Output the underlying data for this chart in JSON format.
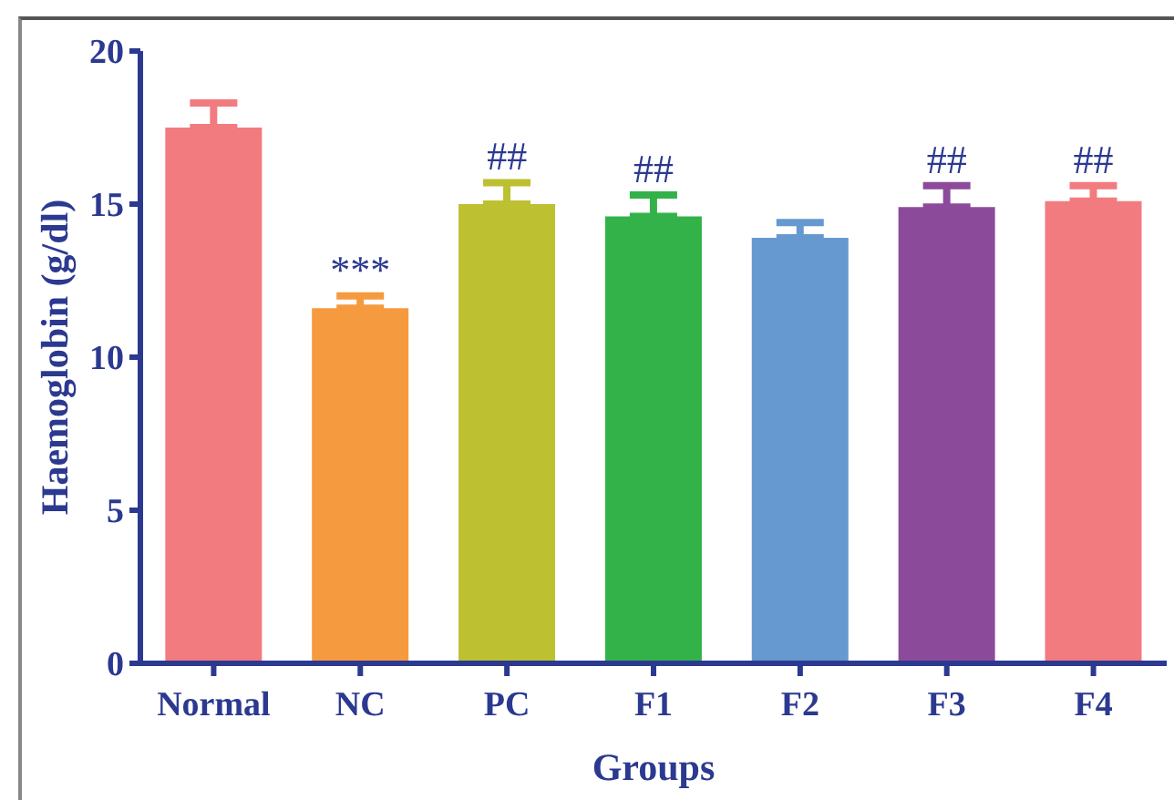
{
  "chart_data": {
    "type": "bar",
    "xlabel": "Groups",
    "ylabel": "Haemoglobin (g/dl)",
    "categories": [
      "Normal",
      "NC",
      "PC",
      "F1",
      "F2",
      "F3",
      "F4"
    ],
    "values": [
      17.5,
      11.6,
      15.0,
      14.6,
      13.9,
      14.9,
      15.1
    ],
    "colors": [
      "#f27b80",
      "#f59a3e",
      "#bdc030",
      "#33b24a",
      "#6699cf",
      "#8b4b9a",
      "#f27b80"
    ],
    "errors": [
      [
        17.5,
        18.3
      ],
      [
        11.6,
        12.0
      ],
      [
        15.0,
        15.7
      ],
      [
        14.6,
        15.3
      ],
      [
        13.9,
        14.4
      ],
      [
        14.9,
        15.6
      ],
      [
        15.1,
        15.6
      ]
    ],
    "ylim": [
      0,
      20
    ],
    "yticks": [
      0,
      5,
      10,
      15,
      20
    ],
    "annotations": [
      {
        "text": "***",
        "x": "NC",
        "y": 12.0
      },
      {
        "text": "##",
        "x": "PC",
        "y": 15.7
      },
      {
        "text": "##",
        "x": "F1",
        "y": 15.3
      },
      {
        "text": "##",
        "x": "F3",
        "y": 15.6
      },
      {
        "text": "##",
        "x": "F4",
        "y": 15.6
      }
    ]
  }
}
